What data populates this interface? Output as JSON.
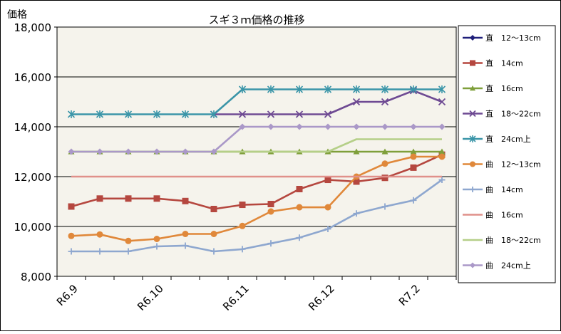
{
  "chart_data": {
    "type": "line",
    "title": "スギ３ｍ価格の推移",
    "ylabel": "価格",
    "xlabel": "",
    "ylim": [
      8000,
      18000
    ],
    "yticks": [
      8000,
      10000,
      12000,
      14000,
      16000,
      18000
    ],
    "ytick_labels": [
      "8,000",
      "10,000",
      "12,000",
      "14,000",
      "16,000",
      "18,000"
    ],
    "x_ticks": [
      {
        "label": "R6.9",
        "index": 0
      },
      {
        "label": "R6.10",
        "index": 3
      },
      {
        "label": "R6.11",
        "index": 6
      },
      {
        "label": "R6.12",
        "index": 9
      },
      {
        "label": "R7.2",
        "index": 12
      }
    ],
    "grid": true,
    "legend_position": "right",
    "plot_background": "#f5f3ec",
    "series": [
      {
        "name": "直　12～13cm",
        "color": "#1f1f7a",
        "marker": "diamond",
        "values": [
          null,
          null,
          null,
          null,
          null,
          null,
          null,
          null,
          null,
          null,
          null,
          null,
          null,
          null
        ]
      },
      {
        "name": "直　14cm",
        "color": "#b5473f",
        "marker": "square",
        "values": [
          10800,
          11120,
          11120,
          11120,
          11020,
          10700,
          10870,
          10900,
          11500,
          11870,
          11800,
          11950,
          12360,
          12880
        ]
      },
      {
        "name": "直　16cm",
        "color": "#7f9f3a",
        "marker": "triangle",
        "values": [
          13000,
          13000,
          13000,
          13000,
          13000,
          13000,
          13000,
          13000,
          13000,
          13000,
          13000,
          13000,
          13000,
          13000
        ]
      },
      {
        "name": "直　18～22cm",
        "color": "#6e4a93",
        "marker": "x",
        "values": [
          null,
          null,
          null,
          null,
          null,
          14500,
          14500,
          14500,
          14500,
          14500,
          15000,
          15000,
          15450,
          15000
        ]
      },
      {
        "name": "直　24cm上",
        "color": "#3a95a8",
        "marker": "star",
        "values": [
          14500,
          14500,
          14500,
          14500,
          14500,
          14500,
          15500,
          15500,
          15500,
          15500,
          15500,
          15500,
          15500,
          15500
        ]
      },
      {
        "name": "曲　12～13cm",
        "color": "#e0883a",
        "marker": "circle",
        "values": [
          9620,
          9680,
          9420,
          9500,
          9700,
          9700,
          10020,
          10600,
          10770,
          10770,
          12000,
          12520,
          12800,
          12800
        ]
      },
      {
        "name": "曲　14cm",
        "color": "#8ea7cf",
        "marker": "plus",
        "values": [
          9000,
          9000,
          9000,
          9200,
          9230,
          9000,
          9090,
          9320,
          9550,
          9900,
          10520,
          10800,
          11050,
          11870
        ]
      },
      {
        "name": "曲　16cm",
        "color": "#e0908a",
        "marker": "none",
        "values": [
          12000,
          12000,
          12000,
          12000,
          12000,
          12000,
          12000,
          12000,
          12000,
          12000,
          12000,
          12000,
          12000,
          12000
        ]
      },
      {
        "name": "曲　18～22cm",
        "color": "#b5cf88",
        "marker": "none",
        "values": [
          13000,
          13000,
          13000,
          13000,
          13000,
          13000,
          13000,
          13000,
          13000,
          13000,
          13500,
          13500,
          13500,
          13500
        ]
      },
      {
        "name": "曲　24cm上",
        "color": "#aa98c8",
        "marker": "diamond",
        "values": [
          13000,
          13000,
          13000,
          13000,
          13000,
          13000,
          14000,
          14000,
          14000,
          14000,
          14000,
          14000,
          14000,
          14000
        ]
      }
    ]
  }
}
